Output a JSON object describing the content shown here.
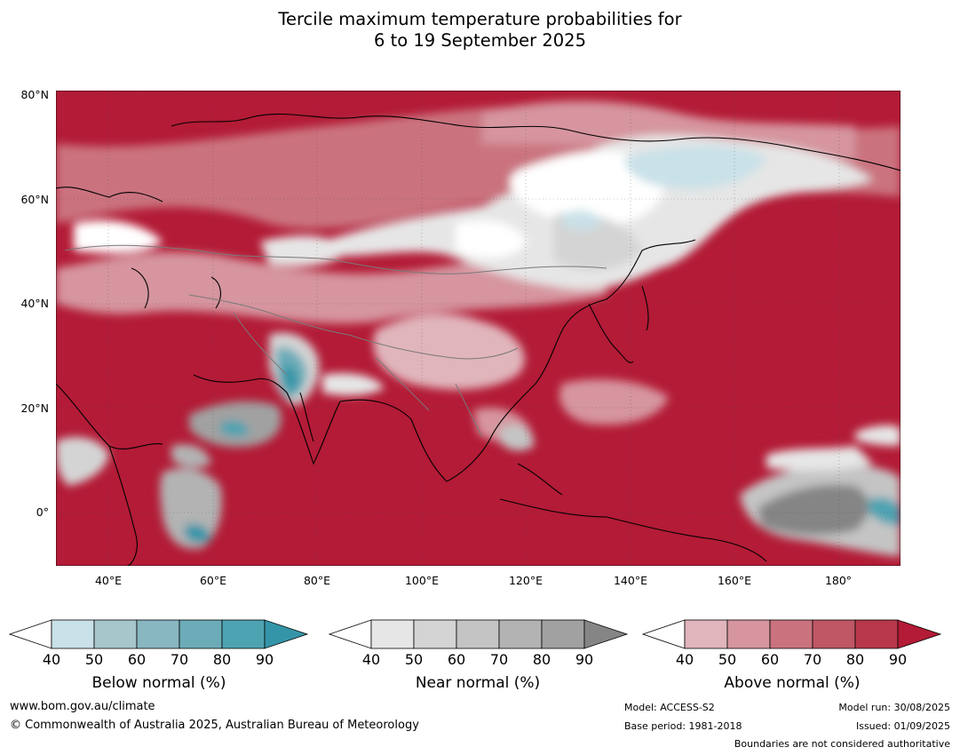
{
  "title_line1": "Tercile maximum temperature probabilities for",
  "title_line2": "6 to 19 September 2025",
  "map": {
    "lat_labels": [
      "80°N",
      "60°N",
      "40°N",
      "20°N",
      "0°"
    ],
    "lon_labels": [
      "40°E",
      "60°E",
      "80°E",
      "100°E",
      "120°E",
      "140°E",
      "160°E",
      "180°"
    ],
    "extent": {
      "lon_min": 30,
      "lon_max": 191,
      "lat_min": -10,
      "lat_max": 81
    }
  },
  "legends": [
    {
      "label": "Below normal (%)",
      "ticks": [
        "40",
        "50",
        "60",
        "70",
        "80",
        "90"
      ],
      "colors": [
        "#ffffff",
        "#c9e1e8",
        "#a6c6cc",
        "#88b6c1",
        "#6cacb8",
        "#4ea3b2",
        "#3595a8"
      ]
    },
    {
      "label": "Near normal (%)",
      "ticks": [
        "40",
        "50",
        "60",
        "70",
        "80",
        "90"
      ],
      "colors": [
        "#ffffff",
        "#e6e6e6",
        "#d4d4d4",
        "#c4c4c4",
        "#b3b3b3",
        "#a1a1a1",
        "#858585"
      ]
    },
    {
      "label": "Above normal (%)",
      "ticks": [
        "40",
        "50",
        "60",
        "70",
        "80",
        "90"
      ],
      "colors": [
        "#ffffff",
        "#e0b5bc",
        "#d6959f",
        "#ca737f",
        "#bf5765",
        "#b8384a",
        "#b31b36"
      ]
    }
  ],
  "footer": {
    "website": "www.bom.gov.au/climate",
    "copyright": "© Commonwealth of Australia 2025, Australian Bureau of Meteorology",
    "model": "Model: ACCESS-S2",
    "base_period": "Base period: 1981-2018",
    "model_run": "Model run: 30/08/2025",
    "issued": "Issued: 01/09/2025",
    "disclaimer": "Boundaries are not considered authoritative"
  }
}
